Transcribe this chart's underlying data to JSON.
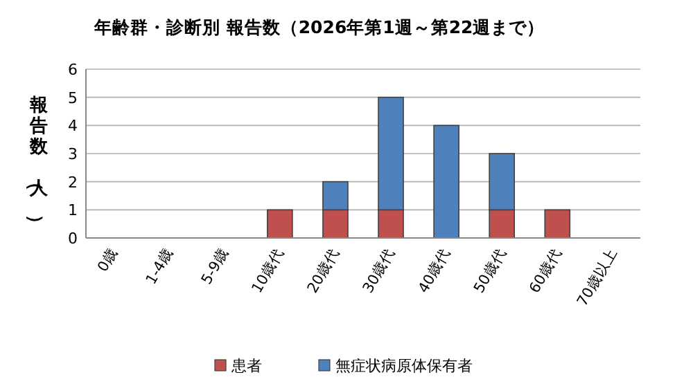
{
  "chart_data": {
    "type": "bar",
    "title": "年齢群・診断別 報告数（2026年第1週～第22週まで）",
    "ylabel": "報告数（人）",
    "categories": [
      "0歳",
      "1-4歳",
      "5-9歳",
      "10歳代",
      "20歳代",
      "30歳代",
      "40歳代",
      "50歳代",
      "60歳代",
      "70歳以上"
    ],
    "series": [
      {
        "name": "患者",
        "color": "#c0504d",
        "values": [
          0,
          0,
          0,
          1,
          1,
          1,
          0,
          1,
          1,
          0
        ]
      },
      {
        "name": "無症状病原体保有者",
        "color": "#4f81bd",
        "values": [
          0,
          0,
          0,
          0,
          1,
          4,
          4,
          2,
          0,
          0
        ]
      }
    ],
    "stacked": true,
    "ylim": [
      0,
      6
    ],
    "yticks": [
      0,
      1,
      2,
      3,
      4,
      5,
      6
    ],
    "grid": "y",
    "legend": "bottom"
  }
}
